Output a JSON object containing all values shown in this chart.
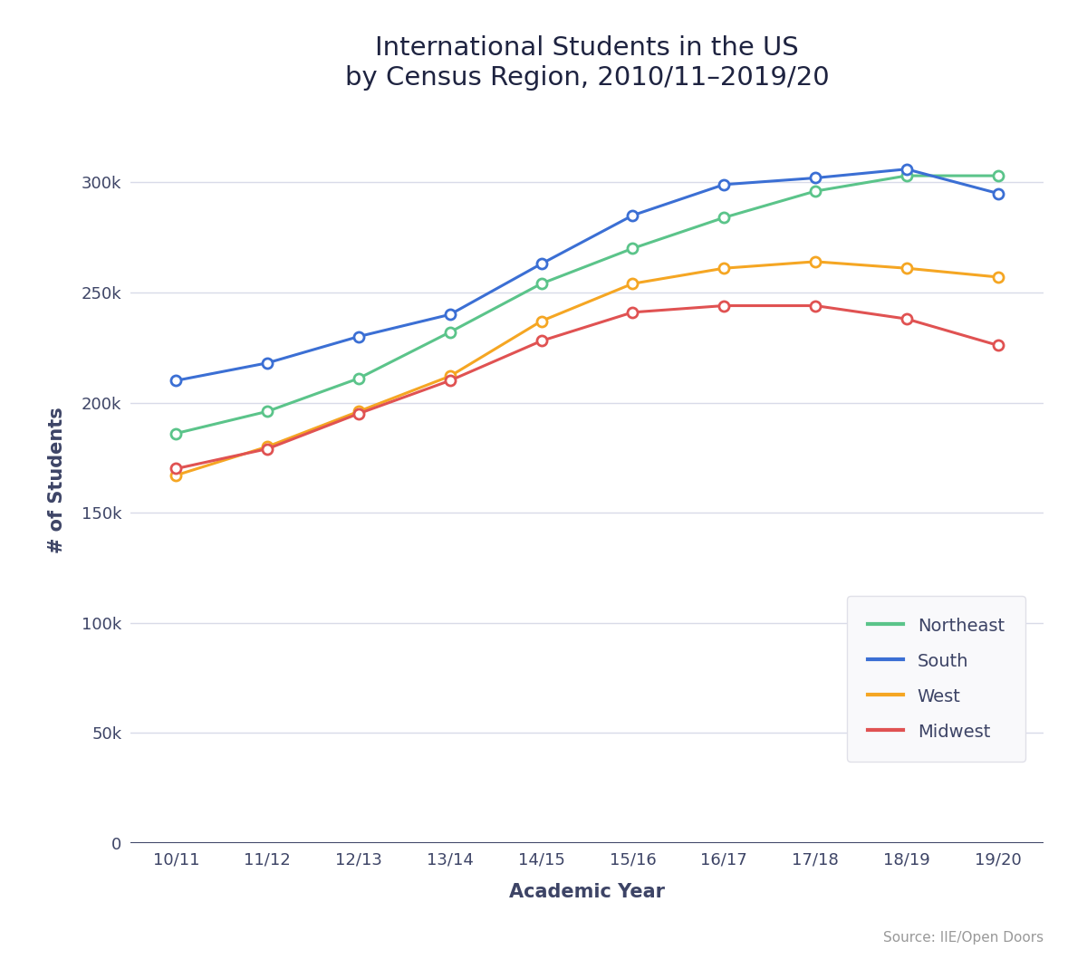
{
  "years": [
    "10/11",
    "11/12",
    "12/13",
    "13/14",
    "14/15",
    "15/16",
    "16/17",
    "17/18",
    "18/19",
    "19/20"
  ],
  "northeast": [
    186000,
    196000,
    211000,
    232000,
    254000,
    270000,
    284000,
    296000,
    303000,
    303000
  ],
  "south": [
    210000,
    218000,
    230000,
    240000,
    263000,
    285000,
    299000,
    302000,
    306000,
    295000
  ],
  "west": [
    167000,
    180000,
    196000,
    212000,
    237000,
    254000,
    261000,
    264000,
    261000,
    257000
  ],
  "midwest": [
    170000,
    179000,
    195000,
    210000,
    228000,
    241000,
    244000,
    244000,
    238000,
    226000
  ],
  "colors": {
    "northeast": "#5BC48A",
    "south": "#3B6FD4",
    "west": "#F5A623",
    "midwest": "#E05252"
  },
  "title_line1": "International Students in the US",
  "title_line2": "by Census Region, 2010/11–2019/20",
  "xlabel": "Academic Year",
  "ylabel": "# of Students",
  "source": "Source: IIE/Open Doors",
  "ylim": [
    0,
    330000
  ],
  "yticks": [
    0,
    50000,
    100000,
    150000,
    200000,
    250000,
    300000
  ],
  "legend_labels": [
    "Northeast",
    "South",
    "West",
    "Midwest"
  ],
  "background_color": "#ffffff",
  "grid_color": "#d8dbe8",
  "axis_color": "#3d4466",
  "title_color": "#1e2340",
  "label_color": "#3d4466",
  "tick_color": "#3d4466",
  "source_color": "#999999",
  "line_width": 2.2,
  "marker_size": 8,
  "marker_edge_width": 2.0,
  "title_fontsize": 21,
  "axis_label_fontsize": 15,
  "tick_fontsize": 13,
  "legend_fontsize": 14,
  "source_fontsize": 11
}
